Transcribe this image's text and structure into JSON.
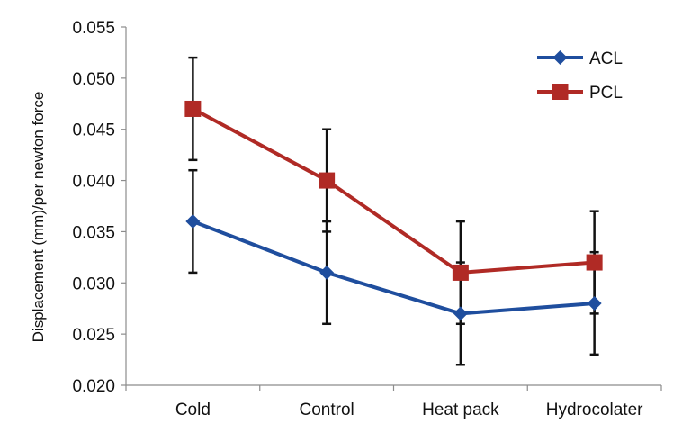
{
  "chart_data": {
    "type": "line",
    "title": "",
    "xlabel": "",
    "ylabel": "Displacement (mm)/per newton force",
    "ylim": [
      0.02,
      0.055
    ],
    "yticks": [
      "0.020",
      "0.025",
      "0.030",
      "0.035",
      "0.040",
      "0.045",
      "0.050",
      "0.055"
    ],
    "categories": [
      "Cold",
      "Control",
      "Heat pack",
      "Hydrocolater"
    ],
    "grid": false,
    "legend_position": "top-right",
    "series": [
      {
        "name": "ACL",
        "color": "#1f4e9e",
        "marker": "diamond",
        "values": [
          0.036,
          0.031,
          0.027,
          0.028
        ],
        "error": [
          0.005,
          0.005,
          0.005,
          0.005
        ]
      },
      {
        "name": "PCL",
        "color": "#b02a25",
        "marker": "square",
        "values": [
          0.047,
          0.04,
          0.031,
          0.032
        ],
        "error": [
          0.005,
          0.005,
          0.005,
          0.005
        ]
      }
    ]
  }
}
